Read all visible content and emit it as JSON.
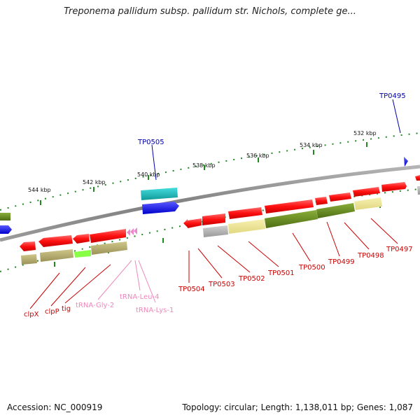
{
  "title": "Treponema pallidum subsp. pallidum str. Nichols, complete ge...",
  "footer": {
    "accession": "Accession: NC_000919",
    "summary": "Topology: circular; Length: 1,138,011 bp; Genes: 1,087"
  },
  "colors": {
    "backbone": "#8a8a8a",
    "cds_forward": "#ff1a1a",
    "cds_reverse": "#ff1a1a",
    "trna": "#ee88cc",
    "misc_blue": "#1a1aee",
    "misc_cyan": "#22bbbb",
    "feature_olive": "#6b8e23",
    "feature_khaki": "#b5ad6e",
    "feature_pale": "#eee69a",
    "feature_gray": "#b0b0b0",
    "feature_lime": "#88ff44",
    "tick_color": "#228822",
    "label_red": "#cc0000",
    "label_blue": "#0000aa",
    "label_pink": "#ee88bb"
  },
  "ticks": [
    "544 kbp",
    "542 kbp",
    "540 kbp",
    "538 kbp",
    "536 kbp",
    "534 kbp",
    "532 kbp"
  ],
  "labels": {
    "top": [
      "TP0505",
      "TP0495"
    ],
    "bottom_red": [
      "TP0504",
      "TP0503",
      "TP0502",
      "TP0501",
      "TP0500",
      "TP0499",
      "TP0498",
      "TP0497"
    ],
    "bottom_left": [
      "clpX",
      "clpP",
      "tig"
    ],
    "trna": [
      "tRNA-Gly-2",
      "tRNA-Leu-4",
      "tRNA-Lys-1"
    ]
  }
}
